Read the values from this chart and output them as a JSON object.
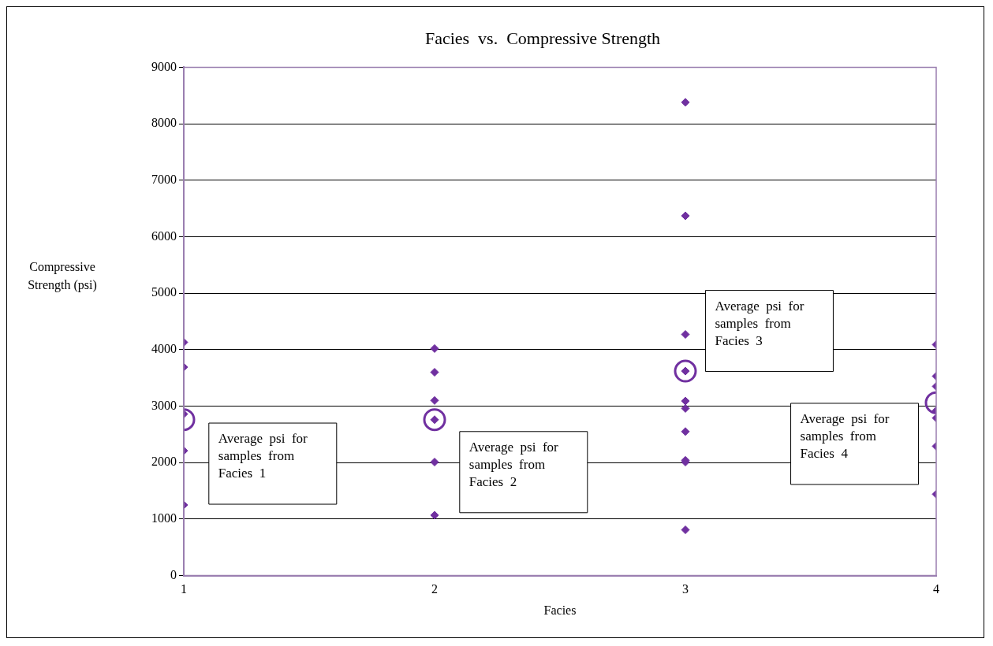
{
  "chart_data": {
    "type": "scatter",
    "title": "Facies  vs.  Compressive Strength",
    "xlabel": "Facies",
    "ylabel": "Compressive Strength (psi)",
    "series": [
      {
        "color": "#7030a0",
        "marker": "diamond",
        "x": [
          1,
          1,
          1,
          1,
          1,
          2,
          2,
          2,
          2,
          2,
          2,
          3,
          3,
          3,
          3,
          3,
          3,
          3,
          3,
          3,
          3,
          4,
          4,
          4,
          4,
          4,
          4,
          4
        ],
        "values": [
          4130,
          3690,
          2860,
          2210,
          1250,
          4020,
          3600,
          3100,
          2760,
          2010,
          1070,
          8380,
          6370,
          4270,
          3620,
          3090,
          2960,
          2550,
          2040,
          2010,
          810,
          4090,
          3530,
          3350,
          2920,
          2790,
          2290,
          1440
        ]
      },
      {
        "color": "#7030a0",
        "marker": "circle",
        "x": [
          1,
          2,
          3,
          4
        ],
        "values": [
          2760,
          2760,
          3620,
          3060
        ]
      }
    ],
    "annotations": [
      "Average  psi  for samples  from Facies  1",
      "Average  psi  for samples  from Facies  2",
      "Average  psi  for samples  from Facies  3",
      "Average  psi  for samples  from Facies  4"
    ],
    "xlim": [
      1,
      4
    ],
    "xticks": [
      1,
      2,
      3,
      4
    ],
    "ylim": [
      0,
      9000
    ],
    "yticks": [
      0,
      1000,
      2000,
      3000,
      4000,
      5000,
      6000,
      7000,
      8000,
      9000
    ],
    "grid": "y",
    "legend": false
  }
}
